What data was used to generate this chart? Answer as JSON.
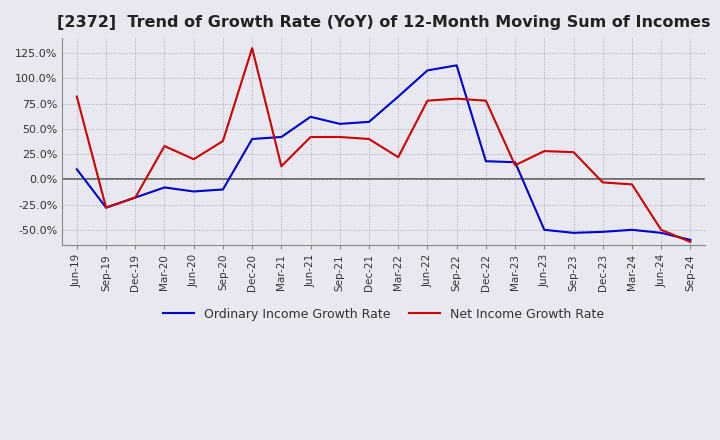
{
  "title": "[2372]  Trend of Growth Rate (YoY) of 12-Month Moving Sum of Incomes",
  "title_fontsize": 11.5,
  "ylim": [
    -65,
    140
  ],
  "yticks": [
    -50.0,
    -25.0,
    0.0,
    25.0,
    50.0,
    75.0,
    100.0,
    125.0
  ],
  "background_color": "#e8e8f0",
  "plot_bg_color": "#e8e8f0",
  "grid_color": "#aaaaaa",
  "ordinary_color": "#0000cc",
  "net_color": "#cc0000",
  "legend_labels": [
    "Ordinary Income Growth Rate",
    "Net Income Growth Rate"
  ],
  "dates": [
    "Jun-19",
    "Sep-19",
    "Dec-19",
    "Mar-20",
    "Jun-20",
    "Sep-20",
    "Dec-20",
    "Mar-21",
    "Jun-21",
    "Sep-21",
    "Dec-21",
    "Mar-22",
    "Jun-22",
    "Sep-22",
    "Dec-22",
    "Mar-23",
    "Jun-23",
    "Sep-23",
    "Dec-23",
    "Mar-24",
    "Jun-24",
    "Sep-24"
  ],
  "ordinary_income": [
    10.0,
    -28.0,
    -18.0,
    -8.0,
    -12.0,
    -10.0,
    40.0,
    42.0,
    62.0,
    55.0,
    57.0,
    82.0,
    108.0,
    113.0,
    18.0,
    17.0,
    -50.0,
    -53.0,
    -52.0,
    -50.0,
    -53.0,
    -60.0
  ],
  "net_income": [
    82.0,
    -28.0,
    -18.0,
    33.0,
    20.0,
    38.0,
    130.0,
    13.0,
    42.0,
    42.0,
    40.0,
    22.0,
    78.0,
    80.0,
    78.0,
    14.0,
    28.0,
    27.0,
    -3.0,
    -5.0,
    -50.0,
    -62.0
  ]
}
